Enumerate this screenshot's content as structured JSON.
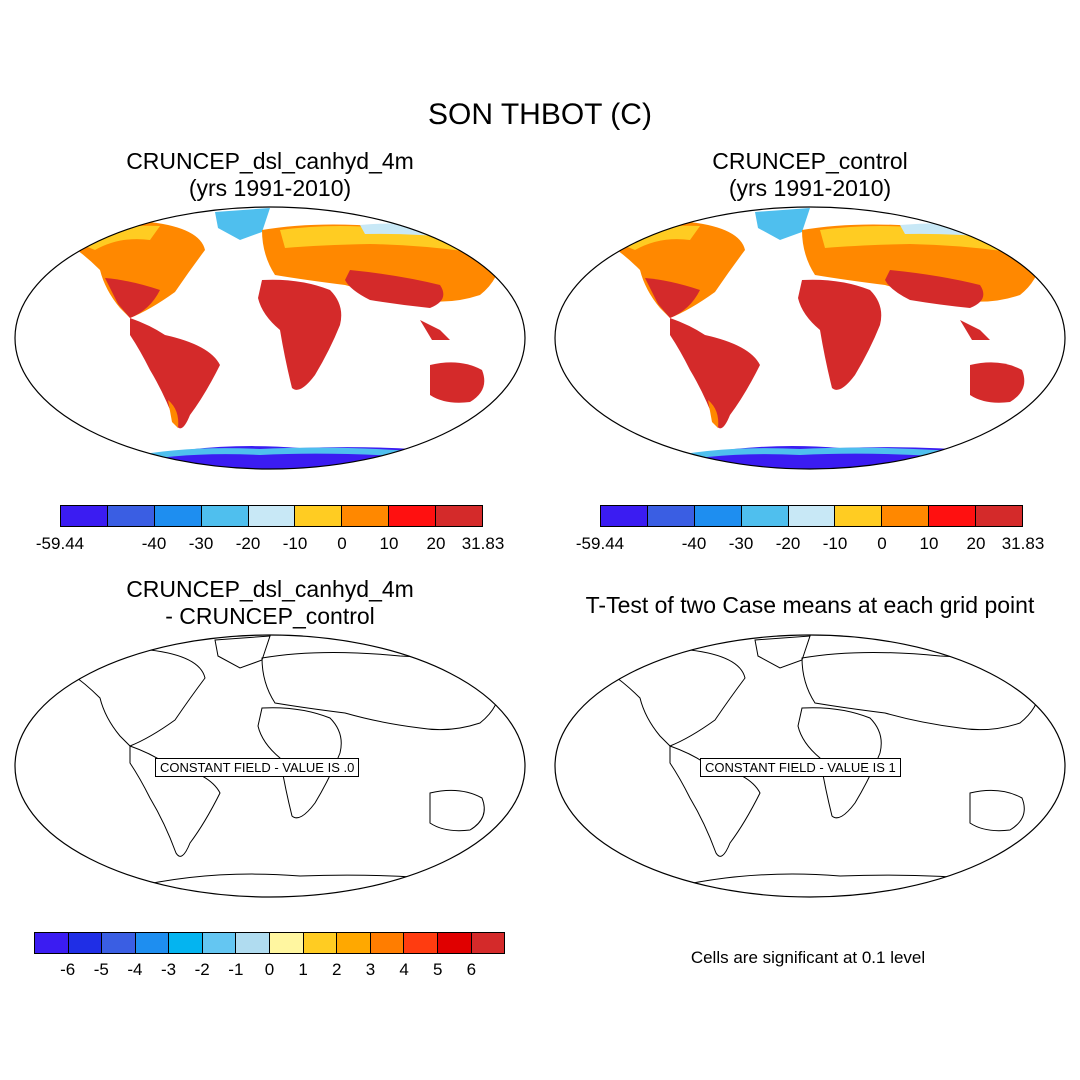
{
  "main_title": "SON THBOT (C)",
  "panels": {
    "tl": {
      "title_line1": "CRUNCEP_dsl_canhyd_4m",
      "title_line2": "(yrs 1991-2010)"
    },
    "tr": {
      "title_line1": "CRUNCEP_control",
      "title_line2": "(yrs 1991-2010)"
    },
    "bl": {
      "title_line1": "CRUNCEP_dsl_canhyd_4m",
      "title_line2": "- CRUNCEP_control",
      "constant_text": "CONSTANT FIELD - VALUE IS .0"
    },
    "br": {
      "title_line1": "T-Test of two Case means at each grid point",
      "constant_text": "CONSTANT FIELD - VALUE IS 1"
    }
  },
  "colorbar_top": {
    "colors": [
      "#3b1cf2",
      "#3a5ee3",
      "#1e8ef0",
      "#4fbfee",
      "#c8e8f6",
      "#ffcc22",
      "#ff8800",
      "#ff1010",
      "#d42a2a"
    ],
    "labels": [
      "-59.44",
      "-40",
      "-30",
      "-20",
      "-10",
      "0",
      "10",
      "20",
      "31.83"
    ]
  },
  "colorbar_bottom": {
    "colors": [
      "#3b1cf2",
      "#1f2ee6",
      "#3a5ee3",
      "#1e8ef0",
      "#04b4f0",
      "#64c6f2",
      "#b0dcf0",
      "#fff6a0",
      "#ffcc22",
      "#ffa800",
      "#ff7d00",
      "#ff3c10",
      "#e00000",
      "#d42a2a"
    ],
    "labels": [
      "-6",
      "-5",
      "-4",
      "-3",
      "-2",
      "-1",
      "0",
      "1",
      "2",
      "3",
      "4",
      "5",
      "6"
    ]
  },
  "note": "Cells are significant at 0.1 level"
}
